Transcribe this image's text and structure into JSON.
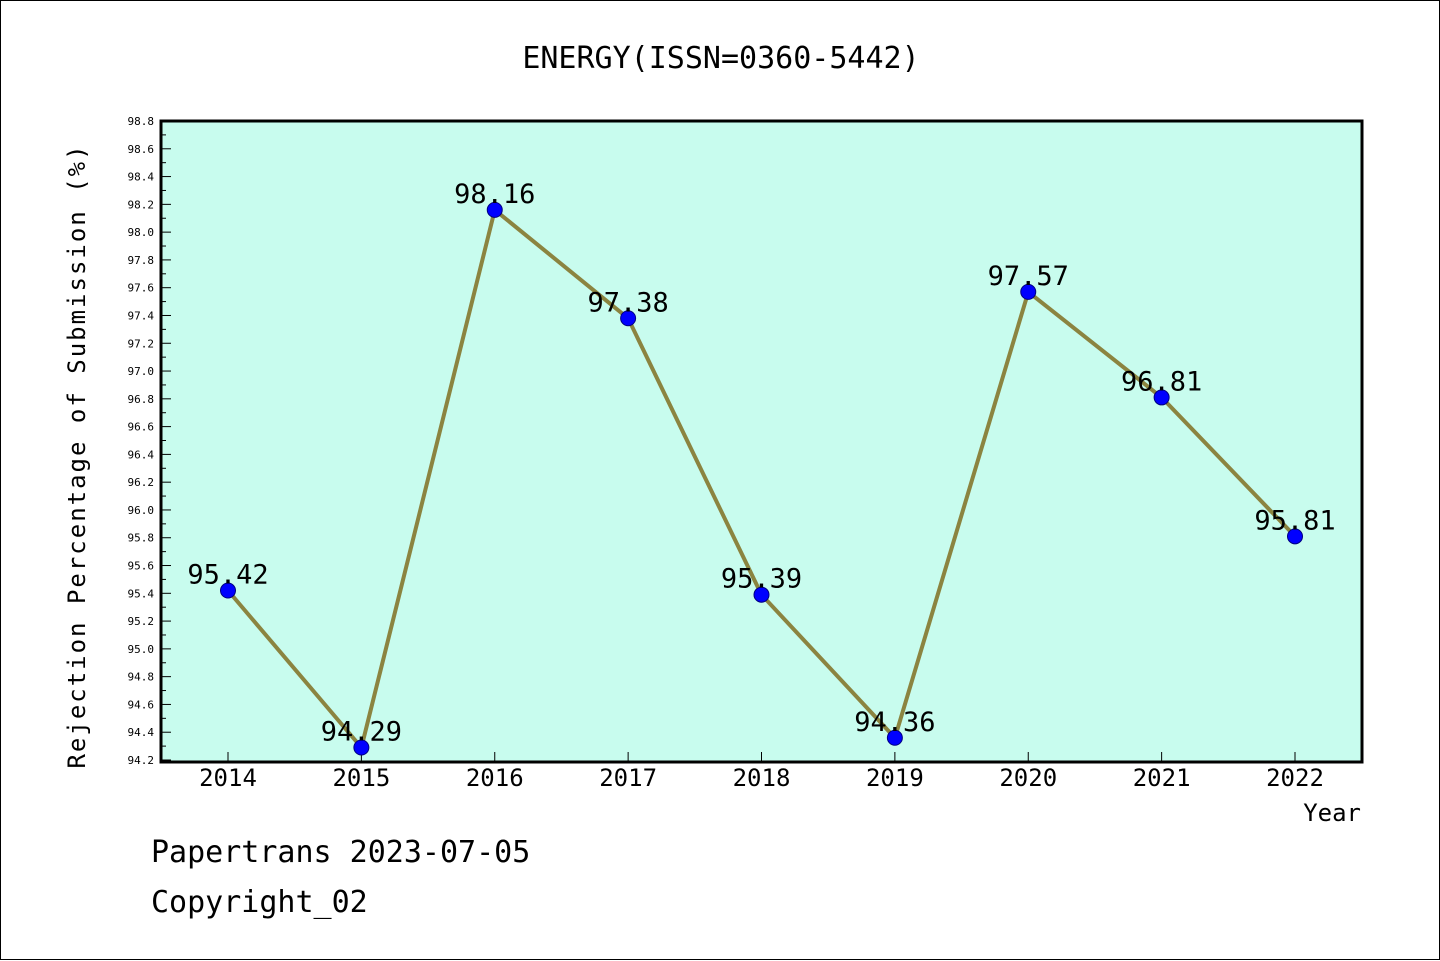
{
  "chart_data": {
    "type": "line",
    "title": "ENERGY(ISSN=0360-5442)",
    "xlabel": "Year",
    "ylabel": "Rejection Percentage of Submission (%)",
    "categories": [
      "2014",
      "2015",
      "2016",
      "2017",
      "2018",
      "2019",
      "2020",
      "2021",
      "2022"
    ],
    "values": [
      95.42,
      94.29,
      98.16,
      97.38,
      95.39,
      94.36,
      97.57,
      96.81,
      95.81
    ],
    "data_labels": [
      "95.42",
      "94.29",
      "98.16",
      "97.38",
      "95.39",
      "94.36",
      "97.57",
      "96.81",
      "95.81"
    ],
    "ylim": [
      94.2,
      98.8
    ],
    "y_ticks": [
      "94.2",
      "94.4",
      "94.6",
      "94.8",
      "95.0",
      "95.2",
      "95.4",
      "95.6",
      "95.8",
      "96.0",
      "96.2",
      "96.4",
      "96.6",
      "96.8",
      "97.0",
      "97.2",
      "97.4",
      "97.6",
      "97.8",
      "98.0",
      "98.2",
      "98.4",
      "98.6",
      "98.8"
    ],
    "grid": false,
    "colors": {
      "plot_background": "#c8fcee",
      "line": "#8b8440",
      "marker": "#0000ff"
    }
  },
  "footer": {
    "line1": "Papertrans 2023-07-05",
    "line2": "Copyright_02"
  }
}
